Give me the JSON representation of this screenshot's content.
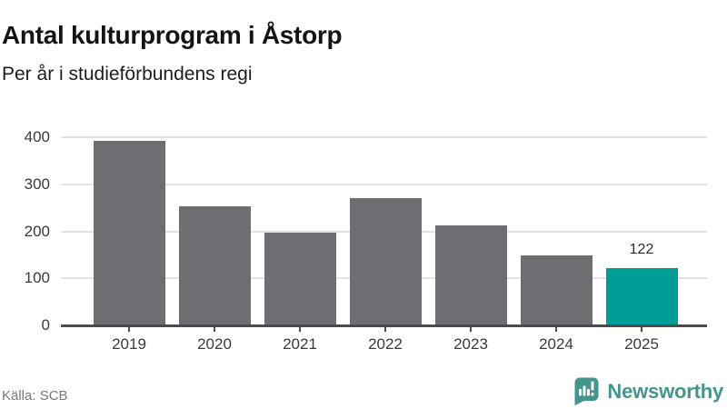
{
  "chart_data": {
    "type": "bar",
    "title": "Antal kulturprogram i Åstorp",
    "subtitle": "Per år i studieförbundens regi",
    "categories": [
      "2019",
      "2020",
      "2021",
      "2022",
      "2023",
      "2024",
      "2025"
    ],
    "values": [
      393,
      253,
      198,
      271,
      212,
      149,
      122
    ],
    "value_labels": {
      "2025": "122"
    },
    "highlight_category": "2025",
    "xlabel": "",
    "ylabel": "",
    "ylim": [
      0,
      400
    ],
    "yticks": [
      0,
      100,
      200,
      300,
      400
    ],
    "grid": true,
    "legend": "none",
    "colors": {
      "bar": "#6e6d72",
      "highlight": "#009d96",
      "gridline": "#e3e3e3",
      "axis": "#4b4b4b",
      "tick_label": "#3a3a3a"
    }
  },
  "footer": {
    "source": "Källa: SCB",
    "brand": "Newsworthy",
    "brand_color": "#43958e"
  }
}
